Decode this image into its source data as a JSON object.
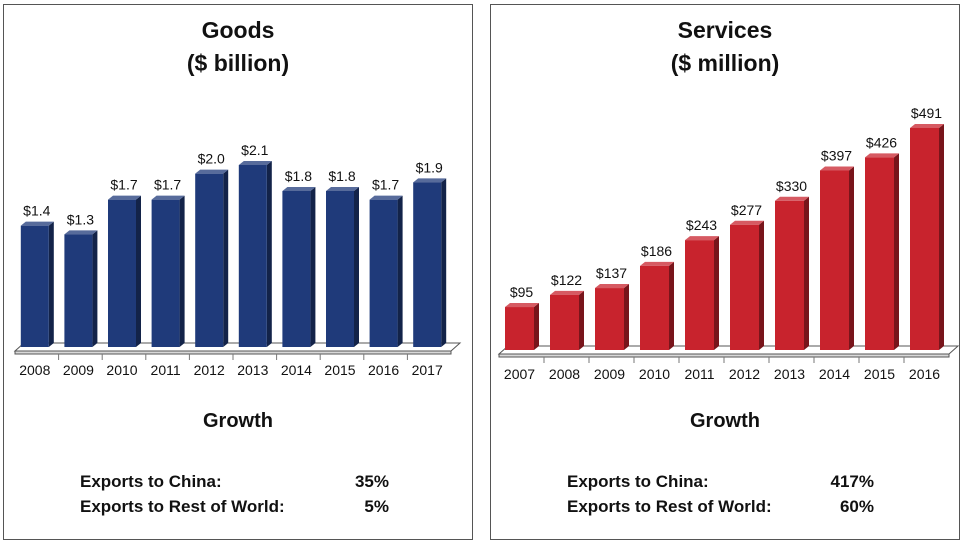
{
  "chart_data": [
    {
      "type": "bar",
      "title": "Goods",
      "subtitle": "($ billion)",
      "categories": [
        "2008",
        "2009",
        "2010",
        "2011",
        "2012",
        "2013",
        "2014",
        "2015",
        "2016",
        "2017"
      ],
      "values": [
        1.4,
        1.3,
        1.7,
        1.7,
        2.0,
        2.1,
        1.8,
        1.8,
        1.7,
        1.9
      ],
      "data_labels": [
        "$1.4",
        "$1.3",
        "$1.7",
        "$1.7",
        "$2.0",
        "$2.1",
        "$1.8",
        "$1.8",
        "$1.7",
        "$1.9"
      ],
      "ylim": [
        0,
        2.1
      ],
      "bar_color": "#1f3a7a",
      "grid": false,
      "growth": {
        "title": "Growth",
        "rows": [
          {
            "label": "Exports to China:",
            "value": "35%"
          },
          {
            "label": "Exports to Rest of World:",
            "value": "5%"
          }
        ]
      }
    },
    {
      "type": "bar",
      "title": "Services",
      "subtitle": "($ million)",
      "categories": [
        "2007",
        "2008",
        "2009",
        "2010",
        "2011",
        "2012",
        "2013",
        "2014",
        "2015",
        "2016"
      ],
      "values": [
        95,
        122,
        137,
        186,
        243,
        277,
        330,
        397,
        426,
        491
      ],
      "data_labels": [
        "$95",
        "$122",
        "$137",
        "$186",
        "$243",
        "$277",
        "$330",
        "$397",
        "$426",
        "$491"
      ],
      "ylim": [
        0,
        491
      ],
      "bar_color": "#c8232d",
      "grid": false,
      "growth": {
        "title": "Growth",
        "rows": [
          {
            "label": "Exports to China:",
            "value": "417%"
          },
          {
            "label": "Exports to Rest of World:",
            "value": "60%"
          }
        ]
      }
    }
  ]
}
